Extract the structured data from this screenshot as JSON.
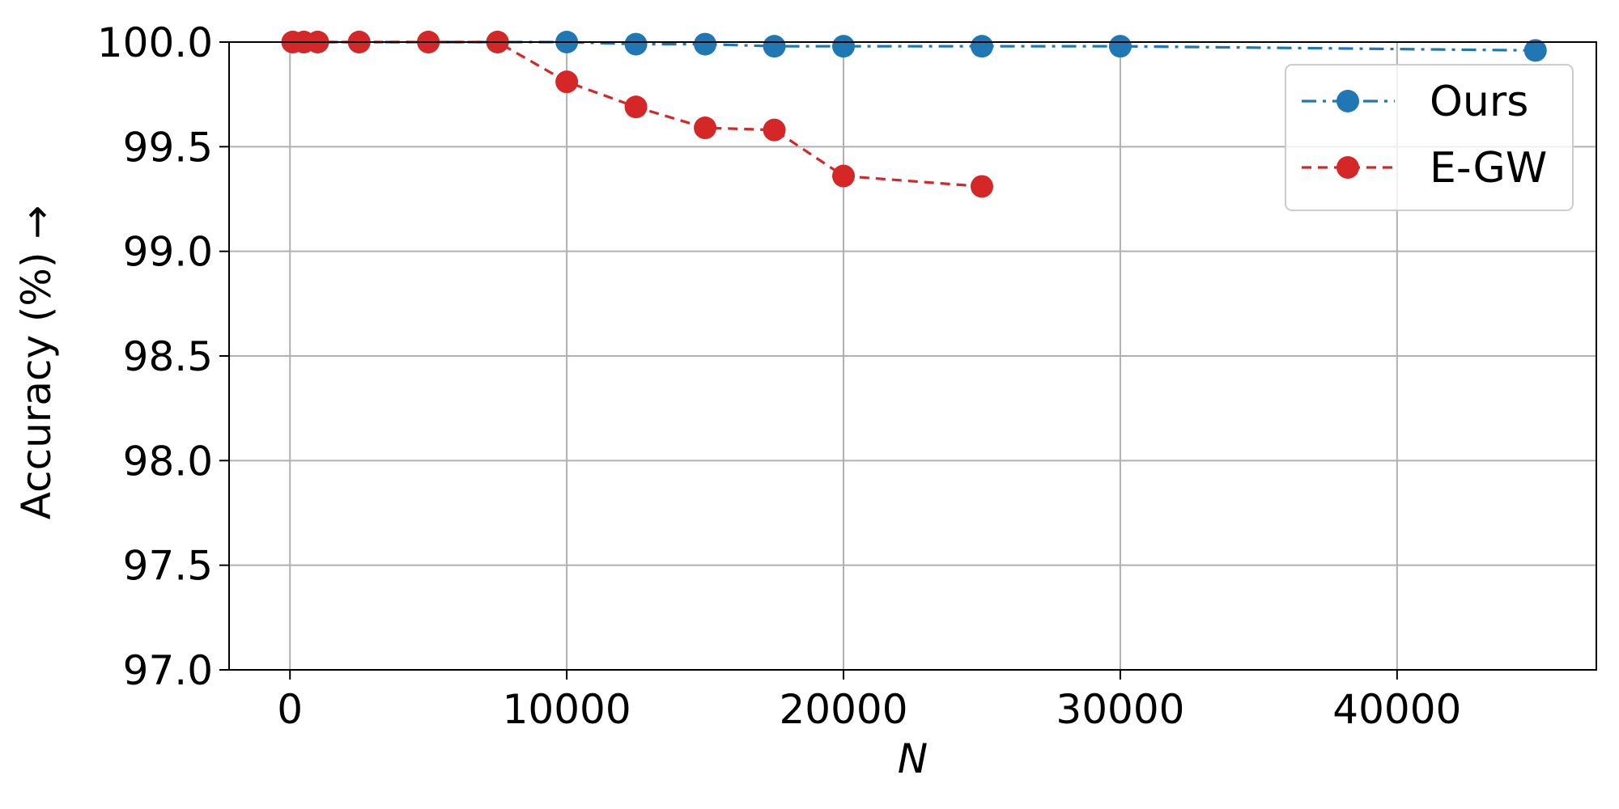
{
  "chart_data": {
    "type": "line",
    "xlabel": "N",
    "ylabel": "Accuracy (%)  →",
    "xlim": [
      -2200,
      47200
    ],
    "ylim": [
      97.0,
      100.0
    ],
    "xticks": [
      0,
      10000,
      20000,
      30000,
      40000
    ],
    "yticks": [
      97.0,
      97.5,
      98.0,
      98.5,
      99.0,
      99.5,
      100.0
    ],
    "x_tick_labels": [
      "0",
      "10000",
      "20000",
      "30000",
      "40000"
    ],
    "y_tick_labels": [
      "97.0",
      "97.5",
      "98.0",
      "98.5",
      "99.0",
      "99.5",
      "100.0"
    ],
    "grid": true,
    "legend_position": "upper right",
    "series": [
      {
        "name": "Ours",
        "color": "#1f77b4",
        "linestyle": "dashdot",
        "marker": "circle",
        "x": [
          100,
          500,
          1000,
          2500,
          5000,
          7500,
          10000,
          12500,
          15000,
          17500,
          20000,
          25000,
          30000,
          45000
        ],
        "y": [
          100.0,
          100.0,
          100.0,
          100.0,
          100.0,
          100.0,
          100.0,
          99.99,
          99.99,
          99.98,
          99.98,
          99.98,
          99.98,
          99.96
        ]
      },
      {
        "name": "E-GW",
        "color": "#d62728",
        "linestyle": "dashed",
        "marker": "circle",
        "x": [
          100,
          500,
          1000,
          2500,
          5000,
          7500,
          10000,
          12500,
          15000,
          17500,
          20000,
          25000
        ],
        "y": [
          100.0,
          100.0,
          100.0,
          100.0,
          100.0,
          100.0,
          99.81,
          99.69,
          99.59,
          99.58,
          99.36,
          99.31
        ]
      }
    ]
  }
}
